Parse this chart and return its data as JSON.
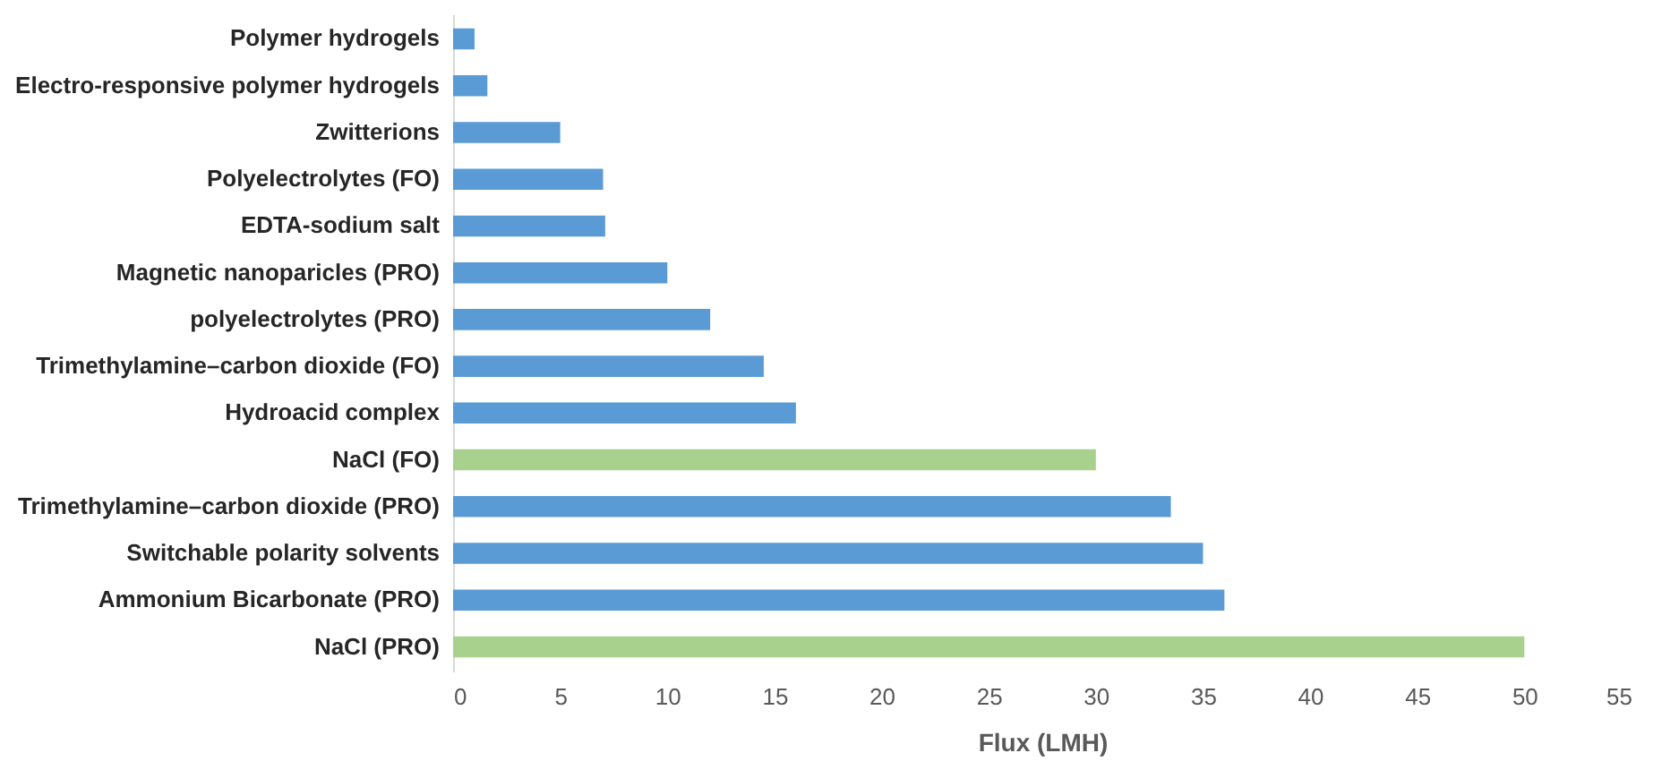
{
  "chart_data": {
    "type": "bar",
    "orientation": "horizontal",
    "xlabel": "Flux (LMH)",
    "categories": [
      "Polymer hydrogels",
      "Electro-responsive polymer hydrogels",
      "Zwitterions",
      "Polyelectrolytes (FO)",
      "EDTA-sodium salt",
      "Magnetic nanoparicles (PRO)",
      "polyelectrolytes (PRO)",
      "Trimethylamine–carbon dioxide (FO)",
      "Hydroacid complex",
      "NaCl (FO)",
      "Trimethylamine–carbon dioxide (PRO)",
      "Switchable polarity solvents",
      "Ammonium Bicarbonate (PRO)",
      "NaCl (PRO)"
    ],
    "values": [
      1.0,
      1.6,
      5.0,
      7.0,
      7.1,
      10.0,
      12.0,
      14.5,
      16.0,
      30.0,
      33.5,
      35.0,
      36.0,
      50.0
    ],
    "colors": [
      "#5b9bd5",
      "#5b9bd5",
      "#5b9bd5",
      "#5b9bd5",
      "#5b9bd5",
      "#5b9bd5",
      "#5b9bd5",
      "#5b9bd5",
      "#5b9bd5",
      "#a9d18e",
      "#5b9bd5",
      "#5b9bd5",
      "#5b9bd5",
      "#a9d18e"
    ],
    "xlim": [
      0,
      55
    ],
    "xticks": [
      0,
      5,
      10,
      15,
      20,
      25,
      30,
      35,
      40,
      45,
      50,
      55
    ],
    "grid": false
  }
}
